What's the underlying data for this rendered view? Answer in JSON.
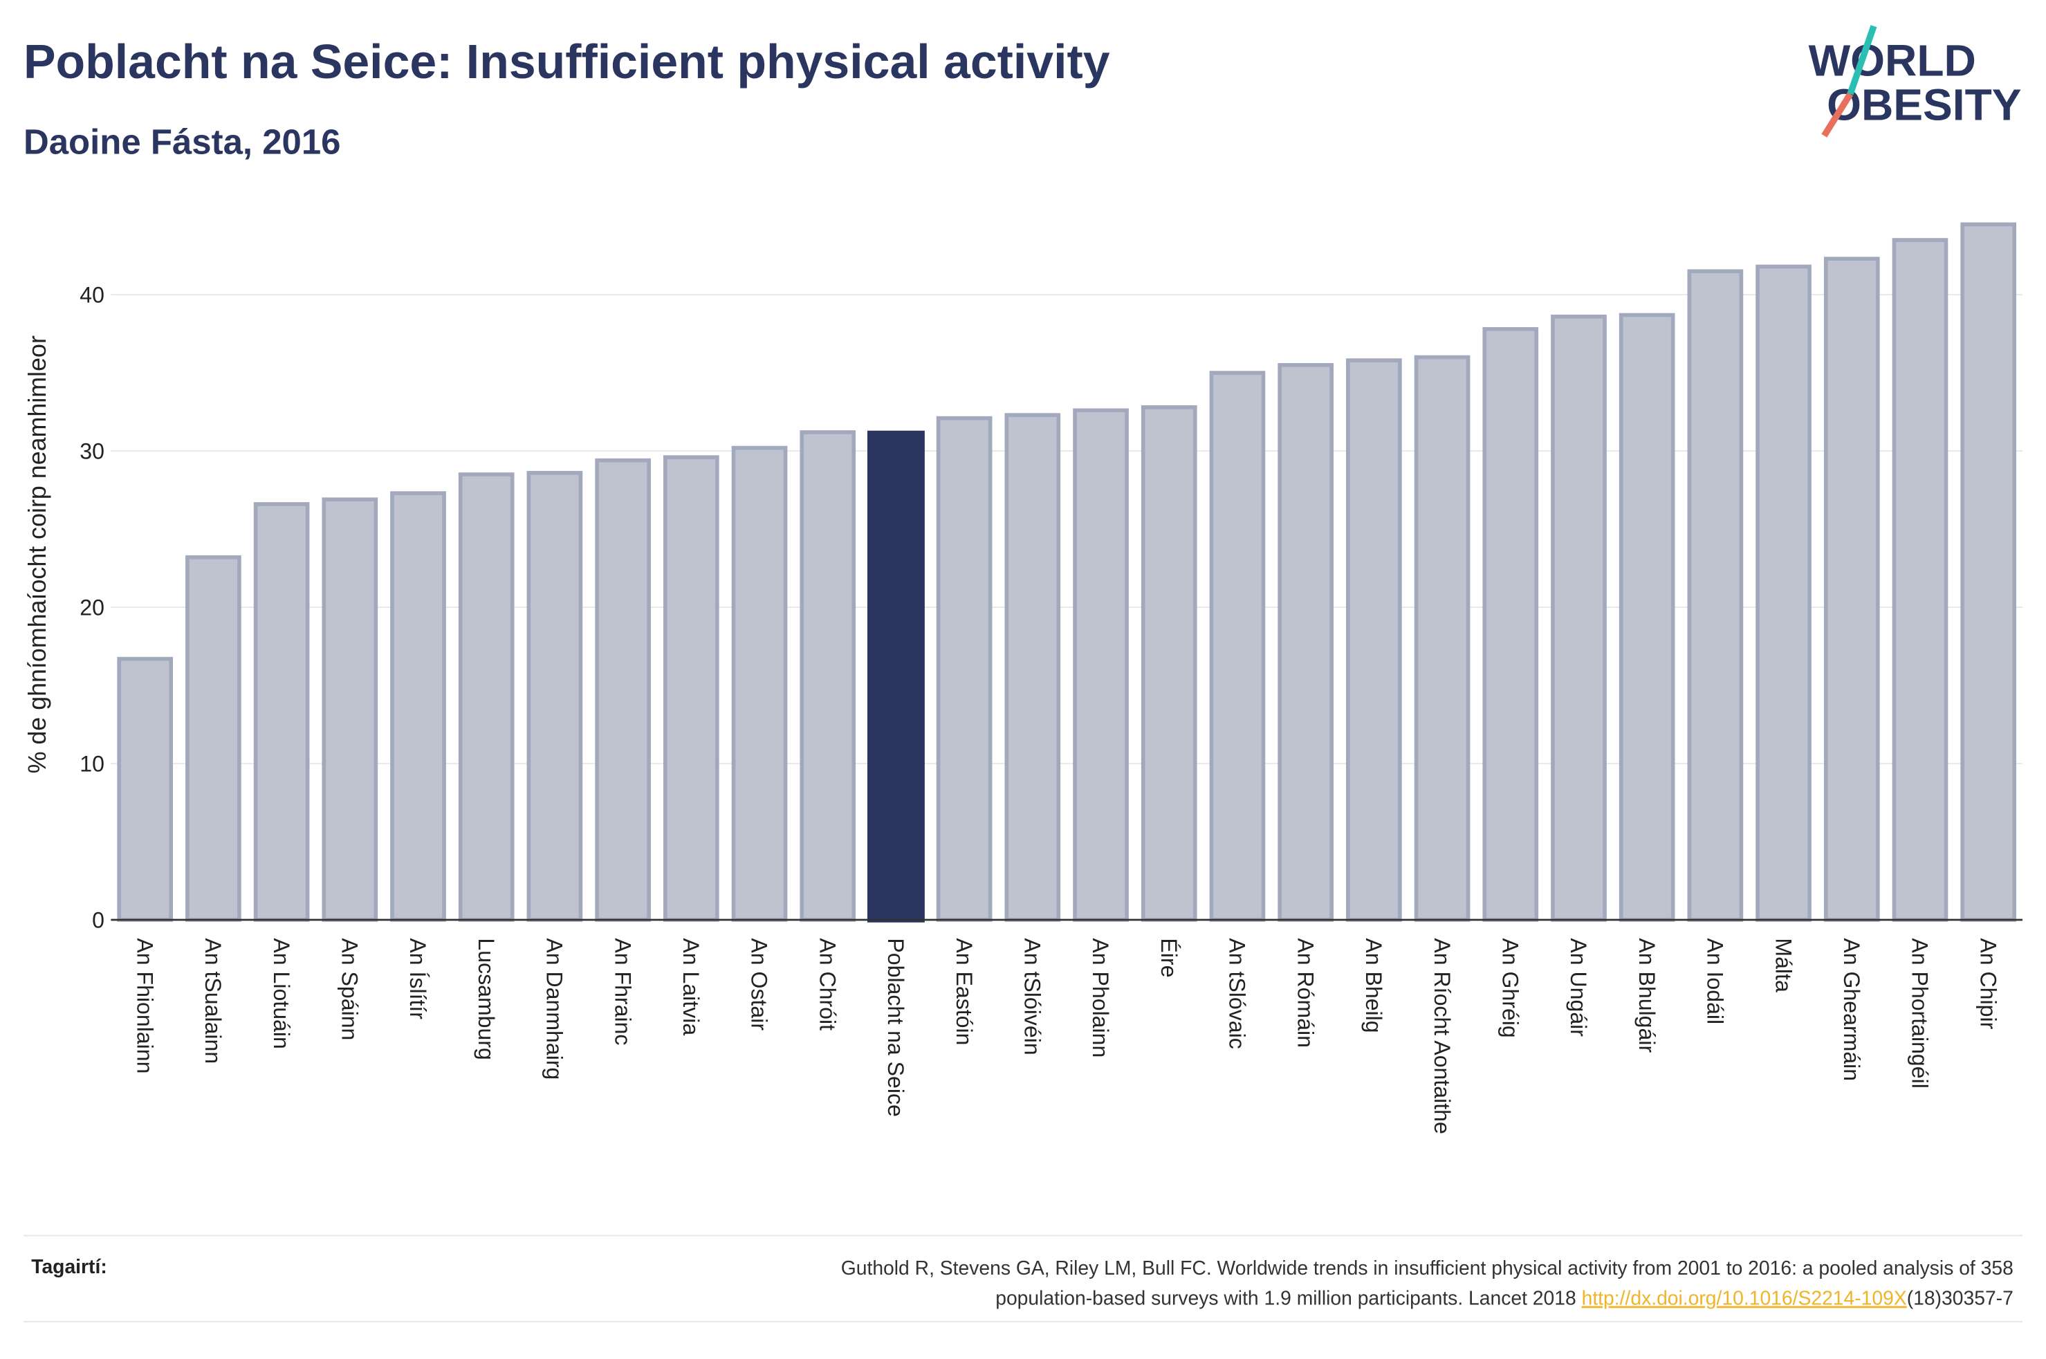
{
  "chart_data": {
    "type": "bar",
    "title": "Poblacht na Seice: Insufficient physical activity",
    "subtitle": "Daoine Fásta, 2016",
    "y_label": "% de ghníomhaíocht coirp neamhimleor",
    "categories": [
      "An Fhionlainn",
      "An tSualainn",
      "An Liotuáin",
      "An Spáinn",
      "An Íslítír",
      "Lucsamburg",
      "An Danmhairg",
      "An Fhrainc",
      "An Laitvia",
      "An Ostair",
      "An Chróit",
      "Poblacht na Seice",
      "An Eastóin",
      "An tSlóivéin",
      "An Pholainn",
      "Éire",
      "An tSlóvaic",
      "An Rómáin",
      "An Bheilg",
      "An Ríocht Aontaithe",
      "An Ghréig",
      "An Ungáir",
      "An Bhulgáir",
      "An Iodáil",
      "Málta",
      "An Ghearmáin",
      "An Phortaingéil",
      "An Chipir"
    ],
    "values": [
      16.7,
      23.2,
      26.6,
      26.9,
      27.3,
      28.5,
      28.6,
      29.4,
      29.6,
      30.2,
      31.2,
      31.3,
      32.1,
      32.3,
      32.6,
      32.8,
      35.0,
      35.5,
      35.8,
      36.0,
      37.8,
      38.6,
      38.7,
      41.5,
      41.8,
      42.3,
      43.5,
      44.5
    ],
    "colors": [
      "#bfc3d0",
      "#bfc3d0",
      "#bfc3d0",
      "#bfc3d0",
      "#bfc3d0",
      "#bfc3d0",
      "#bfc3d0",
      "#bfc3d0",
      "#bfc3d0",
      "#bfc3d0",
      "#bfc3d0",
      "#2a3560",
      "#bfc3d0",
      "#bfc3d0",
      "#bfc3d0",
      "#bfc3d0",
      "#bfc3d0",
      "#bfc3d0",
      "#bfc3d0",
      "#bfc3d0",
      "#bfc3d0",
      "#bfc3d0",
      "#bfc3d0",
      "#bfc3d0",
      "#bfc3d0",
      "#bfc3d0",
      "#bfc3d0",
      "#bfc3d0"
    ],
    "ylim": [
      0,
      46
    ],
    "yticks": [
      0,
      10,
      20,
      30,
      40
    ],
    "grid": true,
    "logo": [
      "WORLD",
      "OBESITY"
    ],
    "source_label": "Tagairtí:",
    "source_line1": "Guthold R, Stevens GA, Riley LM, Bull FC. Worldwide trends in insufficient physical activity from 2001 to 2016: a pooled analysis of 358",
    "source_line2": "population-based surveys with 1.9 million participants. Lancet 2018 ",
    "source_link": "http://dx.doi.org/10.1016/S2214-109X",
    "source_suffix": "(18)30357-7"
  }
}
